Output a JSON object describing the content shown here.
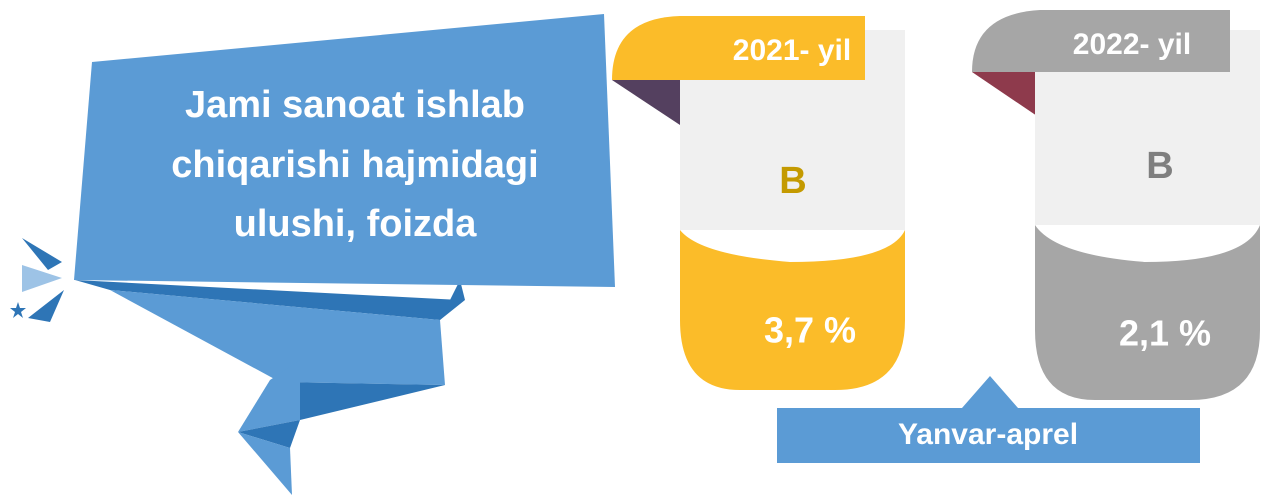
{
  "title": {
    "lines": [
      "Jami sanoat ishlab",
      "chiqarishi hajmidagi",
      "ulushi, foizda"
    ]
  },
  "cards": [
    {
      "year": "2021- yil",
      "letter": "B",
      "value": "3,7 %"
    },
    {
      "year": "2022- yil",
      "letter": "B",
      "value": "2,1 %"
    }
  ],
  "footer": {
    "label": "Yanvar-aprel"
  }
}
